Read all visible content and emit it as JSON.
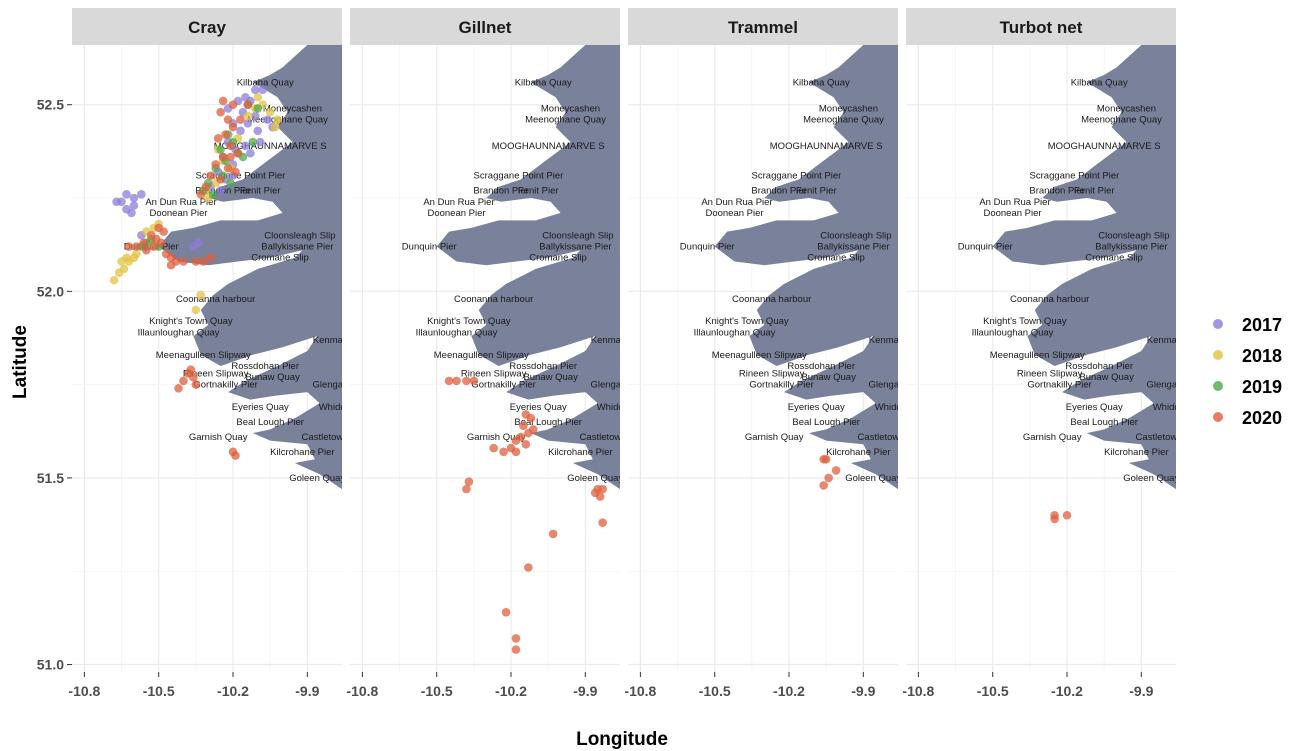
{
  "chart_data": {
    "type": "scatter",
    "xlabel": "Longitude",
    "ylabel": "Latitude",
    "xlim": [
      -10.85,
      -9.76
    ],
    "ylim": [
      50.98,
      52.66
    ],
    "x_ticks": [
      -10.8,
      -10.5,
      -10.2,
      -9.9
    ],
    "x_tick_labels": [
      "-10.8",
      "-10.5",
      "-10.2",
      "-9.9"
    ],
    "y_ticks": [
      51.0,
      51.5,
      52.0,
      52.5
    ],
    "y_tick_labels": [
      "51.0",
      "51.5",
      "52.0",
      "52.5"
    ],
    "grid": true,
    "legend_position": "right",
    "colors": {
      "land": "#7a819a",
      "strip": "#d9d9d9",
      "grid": "#ebebeb"
    },
    "panels": [
      "Cray",
      "Gillnet",
      "Trammel",
      "Turbot net"
    ],
    "series": [
      {
        "name": "2017",
        "color": "#8c7ddb"
      },
      {
        "name": "2018",
        "color": "#e0c341"
      },
      {
        "name": "2019",
        "color": "#4fa84f"
      },
      {
        "name": "2020",
        "color": "#de5f3d"
      }
    ],
    "places": [
      {
        "name": "Kilbaha Quay",
        "lon": -10.07,
        "lat": 52.56
      },
      {
        "name": "Moneycashen",
        "lon": -9.96,
        "lat": 52.49
      },
      {
        "name": "Meenoghane Quay",
        "lon": -9.98,
        "lat": 52.46
      },
      {
        "name": "MOOGHAUNNAMARVE S",
        "lon": -10.05,
        "lat": 52.39
      },
      {
        "name": "Scraggane Point Pier",
        "lon": -10.17,
        "lat": 52.31
      },
      {
        "name": "Brandon Pier",
        "lon": -10.24,
        "lat": 52.27
      },
      {
        "name": "Fenit Pier",
        "lon": -10.09,
        "lat": 52.27
      },
      {
        "name": "An Dun Rua Pier",
        "lon": -10.41,
        "lat": 52.24
      },
      {
        "name": "Doonean Pier",
        "lon": -10.42,
        "lat": 52.21
      },
      {
        "name": "Cloonsleagh Slip",
        "lon": -9.93,
        "lat": 52.15
      },
      {
        "name": "Ballykissane Pier",
        "lon": -9.94,
        "lat": 52.12
      },
      {
        "name": "Dunquin Pier",
        "lon": -10.53,
        "lat": 52.12
      },
      {
        "name": "Cromane Slip",
        "lon": -10.01,
        "lat": 52.09
      },
      {
        "name": "Coonanna harbour",
        "lon": -10.27,
        "lat": 51.98
      },
      {
        "name": "Knight's Town Quay",
        "lon": -10.37,
        "lat": 51.92
      },
      {
        "name": "Illaunloughan Quay",
        "lon": -10.42,
        "lat": 51.89
      },
      {
        "name": "Kenmare",
        "lon": -9.8,
        "lat": 51.87
      },
      {
        "name": "Meenagulleen Slipway",
        "lon": -10.32,
        "lat": 51.83
      },
      {
        "name": "Rossdohan Pier",
        "lon": -10.07,
        "lat": 51.8
      },
      {
        "name": "Rineen Slipway",
        "lon": -10.27,
        "lat": 51.78
      },
      {
        "name": "Bunaw Quay",
        "lon": -10.04,
        "lat": 51.77
      },
      {
        "name": "Glengarriff",
        "lon": -9.79,
        "lat": 51.75
      },
      {
        "name": "Gortnakilly Pier",
        "lon": -10.23,
        "lat": 51.75
      },
      {
        "name": "Eyeries Quay",
        "lon": -10.09,
        "lat": 51.69
      },
      {
        "name": "Whiddy",
        "lon": -9.79,
        "lat": 51.69
      },
      {
        "name": "Beal Lough Pier",
        "lon": -10.05,
        "lat": 51.65
      },
      {
        "name": "Garnish Quay",
        "lon": -10.26,
        "lat": 51.61
      },
      {
        "name": "Castletownbere",
        "lon": -9.79,
        "lat": 51.61
      },
      {
        "name": "Kilcrohane Pier",
        "lon": -9.92,
        "lat": 51.57
      },
      {
        "name": "Goleen Quay",
        "lon": -9.86,
        "lat": 51.5
      }
    ],
    "points": {
      "Cray": {
        "2017": [
          [
            -10.63,
            52.26
          ],
          [
            -10.6,
            52.25
          ],
          [
            -10.57,
            52.26
          ],
          [
            -10.63,
            52.22
          ],
          [
            -10.61,
            52.21
          ],
          [
            -10.65,
            52.24
          ],
          [
            -10.67,
            52.24
          ],
          [
            -10.6,
            52.23
          ],
          [
            -10.36,
            52.12
          ],
          [
            -10.34,
            52.13
          ],
          [
            -10.55,
            52.12
          ],
          [
            -10.57,
            52.15
          ],
          [
            -10.11,
            52.54
          ],
          [
            -10.08,
            52.54
          ],
          [
            -10.13,
            52.51
          ],
          [
            -10.16,
            52.48
          ],
          [
            -10.2,
            52.45
          ],
          [
            -10.17,
            52.43
          ],
          [
            -10.14,
            52.45
          ],
          [
            -10.1,
            52.43
          ],
          [
            -10.22,
            52.4
          ],
          [
            -10.19,
            52.38
          ],
          [
            -10.15,
            52.39
          ],
          [
            -10.24,
            52.36
          ],
          [
            -10.2,
            52.34
          ],
          [
            -10.26,
            52.32
          ],
          [
            -10.23,
            52.3
          ],
          [
            -10.2,
            52.31
          ],
          [
            -10.29,
            52.28
          ],
          [
            -10.25,
            52.27
          ],
          [
            -10.11,
            52.47
          ],
          [
            -10.06,
            52.46
          ],
          [
            -10.04,
            52.44
          ],
          [
            -10.09,
            52.4
          ],
          [
            -10.13,
            52.37
          ],
          [
            -10.18,
            52.51
          ],
          [
            -10.22,
            52.49
          ],
          [
            -10.15,
            52.52
          ]
        ],
        "2018": [
          [
            -10.68,
            52.03
          ],
          [
            -10.66,
            52.05
          ],
          [
            -10.64,
            52.06
          ],
          [
            -10.62,
            52.08
          ],
          [
            -10.6,
            52.09
          ],
          [
            -10.59,
            52.1
          ],
          [
            -10.63,
            52.09
          ],
          [
            -10.65,
            52.08
          ],
          [
            -10.35,
            51.95
          ],
          [
            -10.33,
            51.99
          ],
          [
            -10.55,
            52.16
          ],
          [
            -10.52,
            52.17
          ],
          [
            -10.5,
            52.18
          ],
          [
            -10.53,
            52.13
          ],
          [
            -10.03,
            52.44
          ],
          [
            -10.05,
            52.48
          ],
          [
            -10.08,
            52.5
          ],
          [
            -10.11,
            52.49
          ],
          [
            -10.02,
            52.46
          ],
          [
            -10.24,
            52.35
          ],
          [
            -10.21,
            52.33
          ],
          [
            -10.27,
            52.29
          ],
          [
            -10.31,
            52.27
          ],
          [
            -10.18,
            52.41
          ],
          [
            -10.14,
            52.47
          ],
          [
            -10.1,
            52.52
          ],
          [
            -10.26,
            52.38
          ],
          [
            -10.3,
            52.25
          ]
        ],
        "2019": [
          [
            -10.22,
            52.42
          ],
          [
            -10.2,
            52.4
          ],
          [
            -10.25,
            52.38
          ],
          [
            -10.18,
            52.37
          ],
          [
            -10.23,
            52.35
          ],
          [
            -10.27,
            52.33
          ],
          [
            -10.24,
            52.31
          ],
          [
            -10.3,
            52.29
          ],
          [
            -10.32,
            52.27
          ],
          [
            -10.28,
            52.26
          ],
          [
            -10.21,
            52.29
          ],
          [
            -10.16,
            52.36
          ],
          [
            -10.12,
            52.4
          ],
          [
            -10.55,
            52.13
          ],
          [
            -10.53,
            52.14
          ],
          [
            -10.57,
            52.12
          ],
          [
            -10.5,
            52.12
          ],
          [
            -10.14,
            52.5
          ],
          [
            -10.1,
            52.49
          ]
        ],
        "2020": [
          [
            -10.53,
            52.15
          ],
          [
            -10.51,
            52.14
          ],
          [
            -10.49,
            52.13
          ],
          [
            -10.52,
            52.12
          ],
          [
            -10.55,
            52.11
          ],
          [
            -10.48,
            52.16
          ],
          [
            -10.5,
            52.17
          ],
          [
            -10.56,
            52.13
          ],
          [
            -10.59,
            52.12
          ],
          [
            -10.62,
            52.12
          ],
          [
            -10.47,
            52.1
          ],
          [
            -10.45,
            52.09
          ],
          [
            -10.43,
            52.08
          ],
          [
            -10.4,
            52.08
          ],
          [
            -10.35,
            52.08
          ],
          [
            -10.32,
            52.08
          ],
          [
            -10.29,
            52.09
          ],
          [
            -10.45,
            52.07
          ],
          [
            -10.25,
            52.48
          ],
          [
            -10.22,
            52.46
          ],
          [
            -10.2,
            52.44
          ],
          [
            -10.23,
            52.42
          ],
          [
            -10.26,
            52.41
          ],
          [
            -10.21,
            52.39
          ],
          [
            -10.18,
            52.37
          ],
          [
            -10.24,
            52.36
          ],
          [
            -10.27,
            52.34
          ],
          [
            -10.22,
            52.33
          ],
          [
            -10.19,
            52.32
          ],
          [
            -10.29,
            52.31
          ],
          [
            -10.25,
            52.3
          ],
          [
            -10.31,
            52.28
          ],
          [
            -10.33,
            52.26
          ],
          [
            -10.17,
            52.46
          ],
          [
            -10.14,
            52.5
          ],
          [
            -10.24,
            52.51
          ],
          [
            -10.2,
            52.5
          ],
          [
            -10.21,
            52.36
          ],
          [
            -10.38,
            51.78
          ],
          [
            -10.36,
            51.77
          ],
          [
            -10.4,
            51.76
          ],
          [
            -10.35,
            51.75
          ],
          [
            -10.42,
            51.74
          ],
          [
            -10.37,
            51.79
          ],
          [
            -10.2,
            51.57
          ],
          [
            -10.19,
            51.56
          ]
        ]
      },
      "Gillnet": {
        "2020": [
          [
            -10.45,
            51.76
          ],
          [
            -10.42,
            51.76
          ],
          [
            -10.38,
            51.76
          ],
          [
            -10.35,
            51.76
          ],
          [
            -10.14,
            51.67
          ],
          [
            -10.12,
            51.66
          ],
          [
            -10.15,
            51.64
          ],
          [
            -10.11,
            51.63
          ],
          [
            -10.13,
            51.62
          ],
          [
            -10.16,
            51.61
          ],
          [
            -10.18,
            51.6
          ],
          [
            -10.14,
            51.59
          ],
          [
            -10.2,
            51.58
          ],
          [
            -10.23,
            51.57
          ],
          [
            -10.27,
            51.58
          ],
          [
            -10.18,
            51.57
          ],
          [
            -10.37,
            51.49
          ],
          [
            -10.38,
            51.47
          ],
          [
            -9.86,
            51.46
          ],
          [
            -9.84,
            51.45
          ],
          [
            -9.83,
            51.47
          ],
          [
            -9.85,
            51.47
          ],
          [
            -9.83,
            51.38
          ],
          [
            -10.03,
            51.35
          ],
          [
            -10.13,
            51.26
          ],
          [
            -10.22,
            51.14
          ],
          [
            -10.18,
            51.07
          ],
          [
            -10.18,
            51.04
          ]
        ]
      },
      "Trammel": {
        "2020": [
          [
            -10.05,
            51.55
          ],
          [
            -10.06,
            51.55
          ],
          [
            -10.01,
            51.52
          ],
          [
            -10.04,
            51.5
          ],
          [
            -10.06,
            51.48
          ]
        ]
      },
      "Turbot net": {
        "2020": [
          [
            -10.25,
            51.4
          ],
          [
            -10.2,
            51.4
          ],
          [
            -10.25,
            51.39
          ]
        ]
      }
    }
  }
}
